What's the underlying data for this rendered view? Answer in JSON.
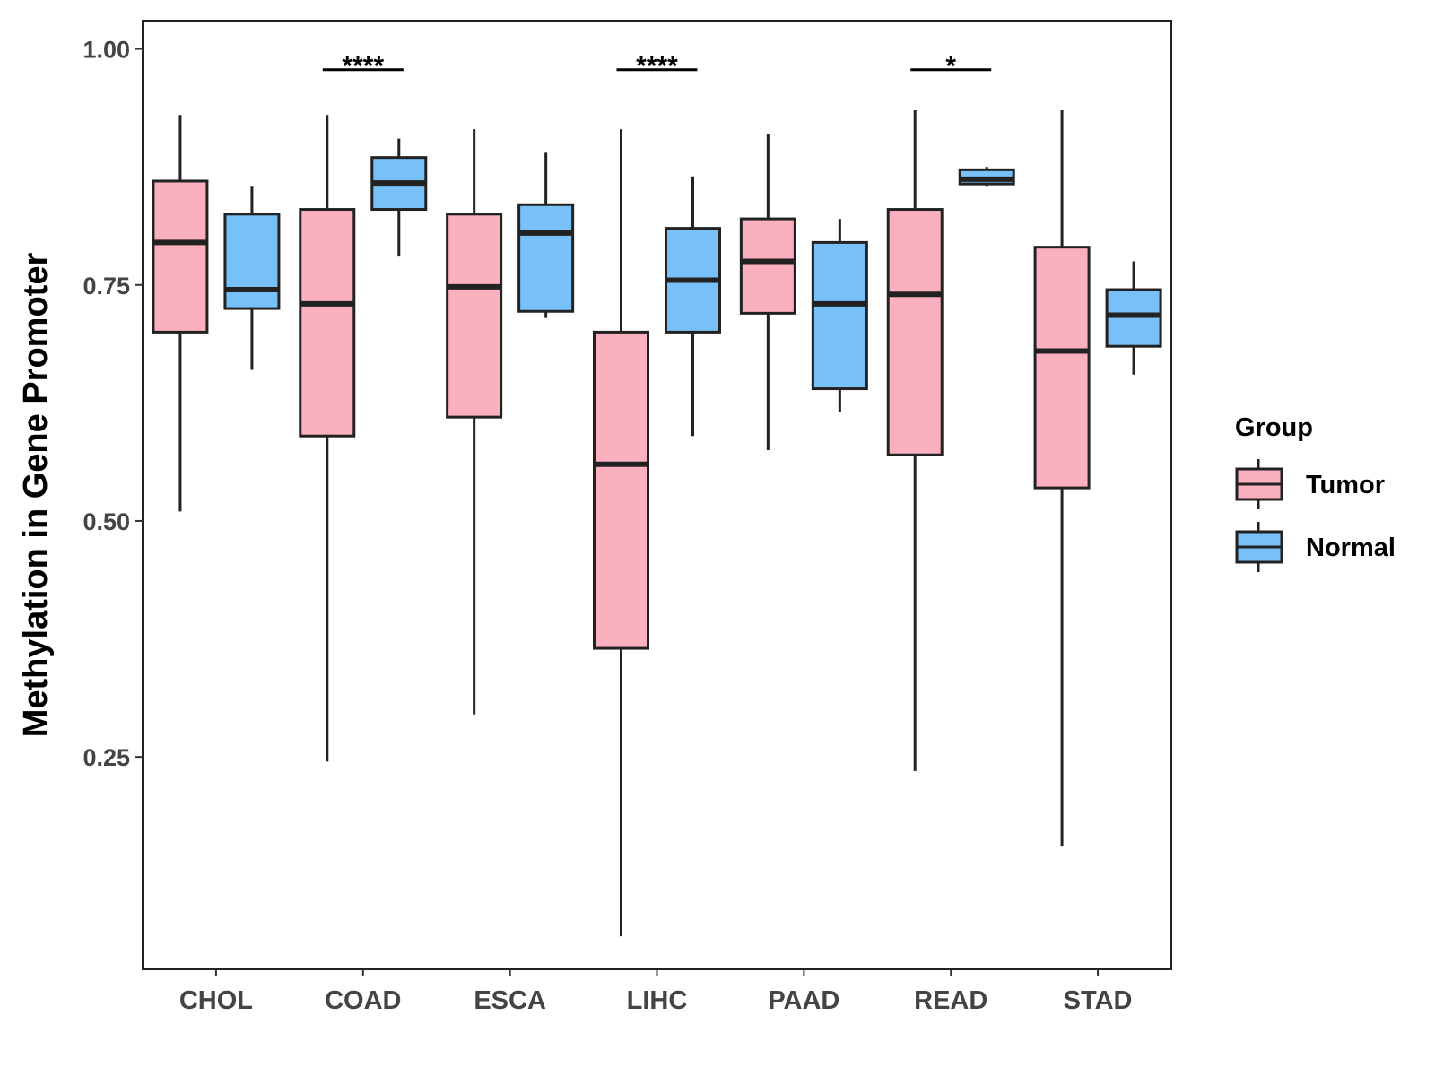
{
  "chart_data": {
    "type": "boxplot",
    "title": "",
    "xlabel": "",
    "ylabel": "Methylation in Gene Promoter",
    "ylim": [
      0.025,
      1.03
    ],
    "yticks": [
      "0.25",
      "0.50",
      "0.75",
      "1.00"
    ],
    "categories": [
      "CHOL",
      "COAD",
      "ESCA",
      "LIHC",
      "PAAD",
      "READ",
      "STAD"
    ],
    "legend": {
      "title": "Group",
      "position": "right",
      "entries": [
        "Tumor",
        "Normal"
      ]
    },
    "colors": {
      "Tumor": "#FBB0C0",
      "Normal": "#77C0F8",
      "outline": "#222222"
    },
    "series": [
      {
        "name": "Tumor",
        "boxes": [
          {
            "min": 0.51,
            "q1": 0.7,
            "median": 0.795,
            "q3": 0.86,
            "max": 0.93
          },
          {
            "min": 0.245,
            "q1": 0.59,
            "median": 0.73,
            "q3": 0.83,
            "max": 0.93
          },
          {
            "min": 0.295,
            "q1": 0.61,
            "median": 0.748,
            "q3": 0.825,
            "max": 0.915
          },
          {
            "min": 0.06,
            "q1": 0.365,
            "median": 0.56,
            "q3": 0.7,
            "max": 0.915
          },
          {
            "min": 0.575,
            "q1": 0.72,
            "median": 0.775,
            "q3": 0.82,
            "max": 0.91
          },
          {
            "min": 0.235,
            "q1": 0.57,
            "median": 0.74,
            "q3": 0.83,
            "max": 0.935
          },
          {
            "min": 0.155,
            "q1": 0.535,
            "median": 0.68,
            "q3": 0.79,
            "max": 0.935
          }
        ]
      },
      {
        "name": "Normal",
        "boxes": [
          {
            "min": 0.66,
            "q1": 0.725,
            "median": 0.745,
            "q3": 0.825,
            "max": 0.855
          },
          {
            "min": 0.78,
            "q1": 0.83,
            "median": 0.858,
            "q3": 0.885,
            "max": 0.905
          },
          {
            "min": 0.715,
            "q1": 0.722,
            "median": 0.805,
            "q3": 0.835,
            "max": 0.89
          },
          {
            "min": 0.59,
            "q1": 0.7,
            "median": 0.755,
            "q3": 0.81,
            "max": 0.865
          },
          {
            "min": 0.615,
            "q1": 0.64,
            "median": 0.73,
            "q3": 0.795,
            "max": 0.82
          },
          {
            "min": 0.855,
            "q1": 0.857,
            "median": 0.862,
            "q3": 0.872,
            "max": 0.875
          },
          {
            "min": 0.655,
            "q1": 0.685,
            "median": 0.718,
            "q3": 0.745,
            "max": 0.775
          }
        ]
      }
    ],
    "significance": [
      {
        "category": "COAD",
        "label": "****",
        "y": 0.978
      },
      {
        "category": "LIHC",
        "label": "****",
        "y": 0.978
      },
      {
        "category": "READ",
        "label": "*",
        "y": 0.978
      }
    ]
  }
}
